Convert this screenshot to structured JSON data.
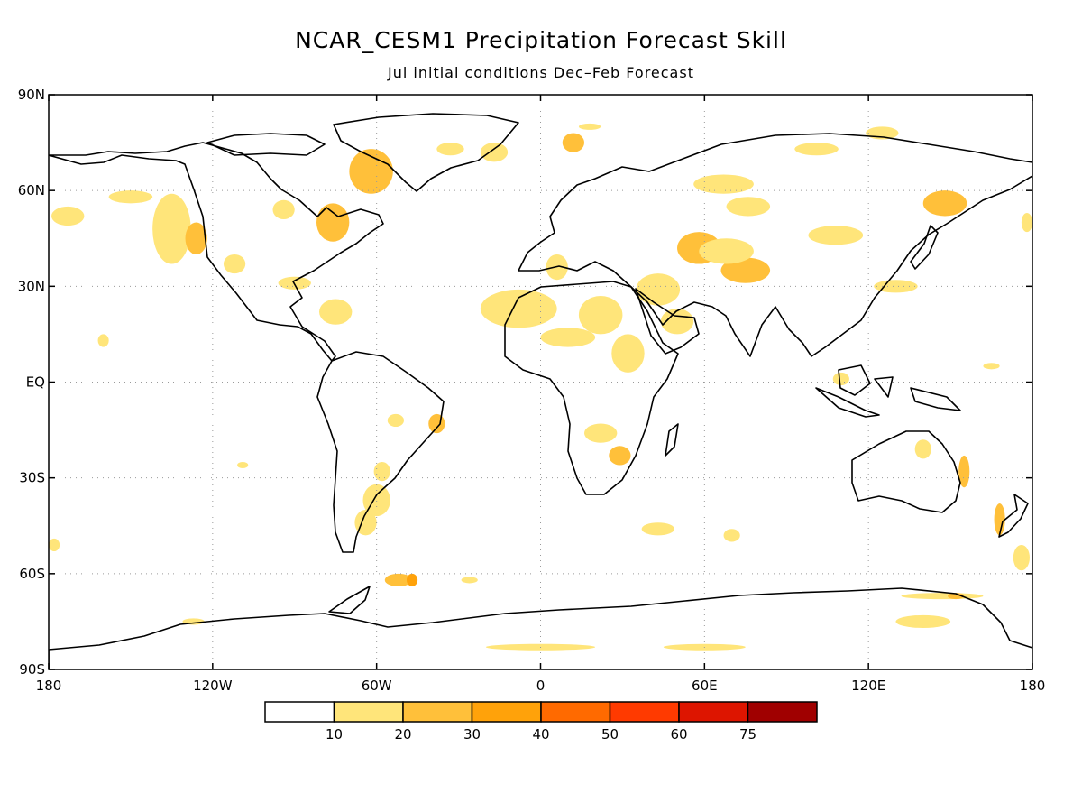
{
  "title": "NCAR_CESM1 Precipitation Forecast Skill",
  "subtitle": "Jul initial conditions  Dec–Feb Forecast",
  "lat_ticks": [
    "90N",
    "60N",
    "30N",
    "EQ",
    "30S",
    "60S",
    "90S"
  ],
  "lon_ticks": [
    "180",
    "120W",
    "60W",
    "0",
    "60E",
    "120E",
    "180"
  ],
  "colorbar": {
    "labels": [
      "10",
      "20",
      "30",
      "40",
      "50",
      "60",
      "75"
    ],
    "colors": [
      "#ffffff",
      "#ffe57a",
      "#ffc03a",
      "#ffa20a",
      "#ff6a00",
      "#ff3a00",
      "#dd1500",
      "#a00000"
    ]
  },
  "skill_regions": [
    {
      "lon": -173,
      "lat": 52,
      "rx": 6,
      "ry": 3,
      "level": 1
    },
    {
      "lon": -150,
      "lat": 58,
      "rx": 8,
      "ry": 2,
      "level": 1
    },
    {
      "lon": -135,
      "lat": 48,
      "rx": 7,
      "ry": 11,
      "level": 1
    },
    {
      "lon": -126,
      "lat": 45,
      "rx": 4,
      "ry": 5,
      "level": 2
    },
    {
      "lon": -112,
      "lat": 37,
      "rx": 4,
      "ry": 3,
      "level": 1
    },
    {
      "lon": -94,
      "lat": 54,
      "rx": 4,
      "ry": 3,
      "level": 1
    },
    {
      "lon": -76,
      "lat": 50,
      "rx": 6,
      "ry": 6,
      "level": 2
    },
    {
      "lon": -90,
      "lat": 31,
      "rx": 6,
      "ry": 2,
      "level": 1
    },
    {
      "lon": -75,
      "lat": 22,
      "rx": 6,
      "ry": 4,
      "level": 1
    },
    {
      "lon": -62,
      "lat": 66,
      "rx": 8,
      "ry": 7,
      "level": 2
    },
    {
      "lon": -33,
      "lat": 73,
      "rx": 5,
      "ry": 2,
      "level": 1
    },
    {
      "lon": -17,
      "lat": 72,
      "rx": 5,
      "ry": 3,
      "level": 1
    },
    {
      "lon": 12,
      "lat": 75,
      "rx": 4,
      "ry": 3,
      "level": 2
    },
    {
      "lon": 18,
      "lat": 80,
      "rx": 4,
      "ry": 1,
      "level": 1
    },
    {
      "lon": 6,
      "lat": 36,
      "rx": 4,
      "ry": 4,
      "level": 1
    },
    {
      "lon": -8,
      "lat": 23,
      "rx": 14,
      "ry": 6,
      "level": 1
    },
    {
      "lon": 10,
      "lat": 14,
      "rx": 10,
      "ry": 3,
      "level": 1
    },
    {
      "lon": 22,
      "lat": 21,
      "rx": 8,
      "ry": 6,
      "level": 1
    },
    {
      "lon": 32,
      "lat": 9,
      "rx": 6,
      "ry": 6,
      "level": 1
    },
    {
      "lon": 43,
      "lat": 29,
      "rx": 8,
      "ry": 5,
      "level": 1
    },
    {
      "lon": 50,
      "lat": 19,
      "rx": 6,
      "ry": 4,
      "level": 1
    },
    {
      "lon": 58,
      "lat": 42,
      "rx": 8,
      "ry": 5,
      "level": 2
    },
    {
      "lon": 75,
      "lat": 35,
      "rx": 9,
      "ry": 4,
      "level": 2
    },
    {
      "lon": 68,
      "lat": 41,
      "rx": 10,
      "ry": 4,
      "level": 1
    },
    {
      "lon": 67,
      "lat": 62,
      "rx": 11,
      "ry": 3,
      "level": 1
    },
    {
      "lon": 76,
      "lat": 55,
      "rx": 8,
      "ry": 3,
      "level": 1
    },
    {
      "lon": 108,
      "lat": 46,
      "rx": 10,
      "ry": 3,
      "level": 1
    },
    {
      "lon": 130,
      "lat": 30,
      "rx": 8,
      "ry": 2,
      "level": 1
    },
    {
      "lon": 148,
      "lat": 56,
      "rx": 8,
      "ry": 4,
      "level": 2
    },
    {
      "lon": 178,
      "lat": 50,
      "rx": 2,
      "ry": 3,
      "level": 1
    },
    {
      "lon": 101,
      "lat": 73,
      "rx": 8,
      "ry": 2,
      "level": 1
    },
    {
      "lon": 125,
      "lat": 78,
      "rx": 6,
      "ry": 2,
      "level": 1
    },
    {
      "lon": 110,
      "lat": 1,
      "rx": 3,
      "ry": 2,
      "level": 1
    },
    {
      "lon": 140,
      "lat": -21,
      "rx": 3,
      "ry": 3,
      "level": 1
    },
    {
      "lon": 155,
      "lat": -28,
      "rx": 2,
      "ry": 5,
      "level": 2
    },
    {
      "lon": 168,
      "lat": -43,
      "rx": 2,
      "ry": 5,
      "level": 2
    },
    {
      "lon": 29,
      "lat": -23,
      "rx": 4,
      "ry": 3,
      "level": 2
    },
    {
      "lon": 22,
      "lat": -16,
      "rx": 6,
      "ry": 3,
      "level": 1
    },
    {
      "lon": -60,
      "lat": -37,
      "rx": 5,
      "ry": 5,
      "level": 1
    },
    {
      "lon": -64,
      "lat": -44,
      "rx": 4,
      "ry": 4,
      "level": 1
    },
    {
      "lon": -53,
      "lat": -12,
      "rx": 3,
      "ry": 2,
      "level": 1
    },
    {
      "lon": -38,
      "lat": -13,
      "rx": 3,
      "ry": 3,
      "level": 2
    },
    {
      "lon": -58,
      "lat": -28,
      "rx": 3,
      "ry": 3,
      "level": 1
    },
    {
      "lon": -52,
      "lat": -62,
      "rx": 5,
      "ry": 2,
      "level": 2
    },
    {
      "lon": -47,
      "lat": -62,
      "rx": 2,
      "ry": 2,
      "level": 3
    },
    {
      "lon": -26,
      "lat": -62,
      "rx": 3,
      "ry": 1,
      "level": 1
    },
    {
      "lon": 43,
      "lat": -46,
      "rx": 6,
      "ry": 2,
      "level": 1
    },
    {
      "lon": 70,
      "lat": -48,
      "rx": 3,
      "ry": 2,
      "level": 1
    },
    {
      "lon": 147,
      "lat": -67,
      "rx": 15,
      "ry": 1,
      "level": 1
    },
    {
      "lon": 152,
      "lat": -67,
      "rx": 3,
      "ry": 1,
      "level": 2
    },
    {
      "lon": 140,
      "lat": -75,
      "rx": 10,
      "ry": 2,
      "level": 1
    },
    {
      "lon": -127,
      "lat": -75,
      "rx": 4,
      "ry": 1,
      "level": 1
    },
    {
      "lon": 0,
      "lat": -83,
      "rx": 20,
      "ry": 1,
      "level": 1
    },
    {
      "lon": 60,
      "lat": -83,
      "rx": 15,
      "ry": 1,
      "level": 1
    },
    {
      "lon": -160,
      "lat": 13,
      "rx": 2,
      "ry": 2,
      "level": 1
    },
    {
      "lon": -109,
      "lat": -26,
      "rx": 2,
      "ry": 1,
      "level": 1
    },
    {
      "lon": -178,
      "lat": -51,
      "rx": 2,
      "ry": 2,
      "level": 1
    },
    {
      "lon": 176,
      "lat": -55,
      "rx": 3,
      "ry": 4,
      "level": 1
    },
    {
      "lon": 165,
      "lat": 5,
      "rx": 3,
      "ry": 1,
      "level": 1
    }
  ]
}
